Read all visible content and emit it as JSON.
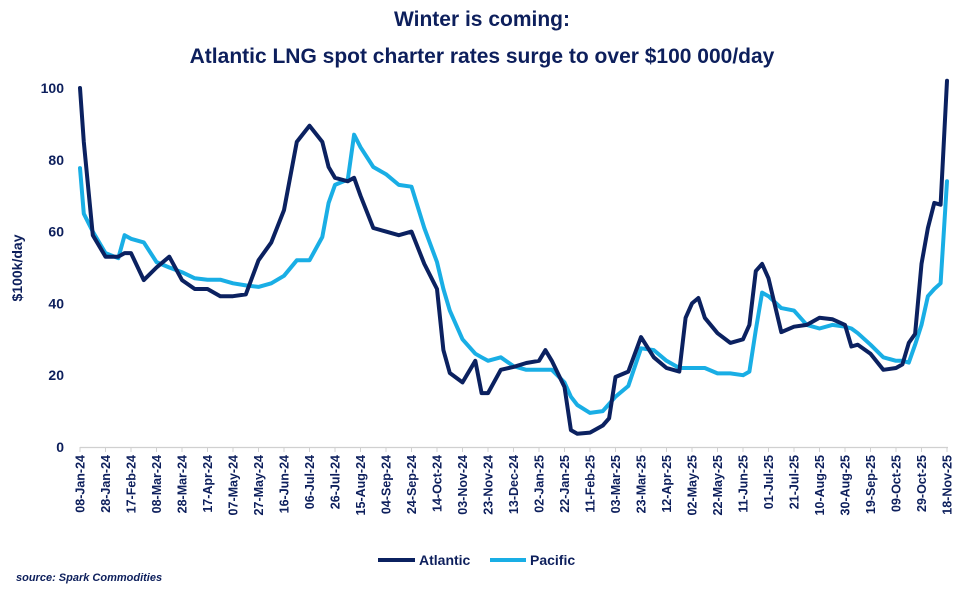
{
  "chart_data": {
    "type": "line",
    "title": "Winter is coming:",
    "subtitle": "Atlantic LNG spot charter rates surge to over $100 000/day",
    "ylabel": "$100k/day",
    "xlabel": "",
    "ylim": [
      0,
      100
    ],
    "yticks": [
      "0",
      "20",
      "40",
      "60",
      "80",
      "100"
    ],
    "grid": false,
    "legend": "bottom",
    "source": "source: Spark Commodities",
    "xtick_labels": [
      "08-Jan-24",
      "28-Jan-24",
      "17-Feb-24",
      "08-Mar-24",
      "28-Mar-24",
      "17-Apr-24",
      "07-May-24",
      "27-May-24",
      "16-Jun-24",
      "06-Jul-24",
      "26-Jul-24",
      "15-Aug-24",
      "04-Sep-24",
      "24-Sep-24",
      "14-Oct-24",
      "03-Nov-24",
      "23-Nov-24",
      "13-Dec-24",
      "02-Jan-25",
      "22-Jan-25",
      "11-Feb-25",
      "03-Mar-25",
      "23-Mar-25",
      "12-Apr-25",
      "02-May-25",
      "22-May-25",
      "11-Jun-25",
      "01-Jul-25",
      "21-Jul-25",
      "10-Aug-25",
      "30-Aug-25",
      "19-Sep-25",
      "09-Oct-25",
      "29-Oct-25",
      "18-Nov-25"
    ],
    "x": [
      "2024-01-08",
      "2024-01-11",
      "2024-01-18",
      "2024-01-28",
      "2024-02-07",
      "2024-02-12",
      "2024-02-17",
      "2024-02-27",
      "2024-03-08",
      "2024-03-18",
      "2024-03-28",
      "2024-04-07",
      "2024-04-17",
      "2024-04-27",
      "2024-05-07",
      "2024-05-17",
      "2024-05-27",
      "2024-06-06",
      "2024-06-16",
      "2024-06-26",
      "2024-07-06",
      "2024-07-16",
      "2024-07-21",
      "2024-07-26",
      "2024-08-05",
      "2024-08-10",
      "2024-08-15",
      "2024-08-25",
      "2024-09-04",
      "2024-09-14",
      "2024-09-24",
      "2024-10-04",
      "2024-10-14",
      "2024-10-19",
      "2024-10-24",
      "2024-11-03",
      "2024-11-13",
      "2024-11-18",
      "2024-11-23",
      "2024-12-03",
      "2024-12-13",
      "2024-12-23",
      "2025-01-02",
      "2025-01-07",
      "2025-01-12",
      "2025-01-22",
      "2025-01-27",
      "2025-02-01",
      "2025-02-11",
      "2025-02-21",
      "2025-02-26",
      "2025-03-03",
      "2025-03-13",
      "2025-03-23",
      "2025-04-02",
      "2025-04-12",
      "2025-04-22",
      "2025-04-27",
      "2025-05-02",
      "2025-05-07",
      "2025-05-12",
      "2025-05-22",
      "2025-06-01",
      "2025-06-11",
      "2025-06-16",
      "2025-06-21",
      "2025-06-26",
      "2025-07-01",
      "2025-07-11",
      "2025-07-21",
      "2025-07-31",
      "2025-08-10",
      "2025-08-20",
      "2025-08-30",
      "2025-09-04",
      "2025-09-09",
      "2025-09-19",
      "2025-09-29",
      "2025-10-09",
      "2025-10-14",
      "2025-10-19",
      "2025-10-24",
      "2025-10-29",
      "2025-11-03",
      "2025-11-08",
      "2025-11-13",
      "2025-11-18"
    ],
    "series": [
      {
        "name": "Atlantic",
        "color": "#0b2160",
        "values": [
          100,
          85,
          59,
          53,
          53,
          54,
          54,
          46.5,
          50,
          53,
          46.5,
          44,
          44,
          42,
          42,
          42.5,
          52,
          57,
          66,
          85,
          89.5,
          85,
          78,
          75,
          74,
          75,
          70,
          61,
          60,
          59,
          60,
          51,
          44,
          27,
          20.6,
          18,
          24,
          15,
          15,
          21.5,
          22.3,
          23.4,
          24,
          27,
          24,
          16.7,
          4.7,
          3.7,
          4,
          6,
          8,
          19.5,
          21,
          30.6,
          25,
          22,
          21,
          36,
          40,
          41.5,
          36,
          31.7,
          29,
          30,
          34,
          49,
          51,
          47,
          32,
          33.5,
          34,
          36,
          35.6,
          34,
          28,
          28.5,
          26,
          21.5,
          22,
          23,
          29,
          31.5,
          51,
          61,
          68,
          67.5,
          102
        ]
      },
      {
        "name": "Pacific",
        "color": "#19aee5",
        "values": [
          77.7,
          65,
          60,
          54,
          52.6,
          59,
          58,
          57,
          51.5,
          50,
          48.7,
          47,
          46.6,
          46.6,
          45.6,
          45,
          44.6,
          45.6,
          47.7,
          52,
          52,
          58.5,
          68,
          73,
          74.5,
          87,
          83.5,
          78,
          76,
          73,
          72.5,
          61,
          51.5,
          44,
          38,
          30,
          26,
          25,
          24,
          25,
          22.5,
          21.5,
          21.5,
          21.5,
          21.5,
          18,
          14,
          11.7,
          9.5,
          10,
          12,
          14,
          17,
          27.5,
          27,
          24,
          22,
          22,
          22,
          22,
          22,
          20.5,
          20.5,
          20,
          21,
          32.6,
          43,
          42,
          38.7,
          38,
          34,
          33,
          34,
          33.5,
          33,
          31.7,
          28.5,
          25,
          24,
          24,
          23.5,
          28.5,
          34,
          42,
          44,
          45.6,
          74
        ]
      }
    ]
  }
}
